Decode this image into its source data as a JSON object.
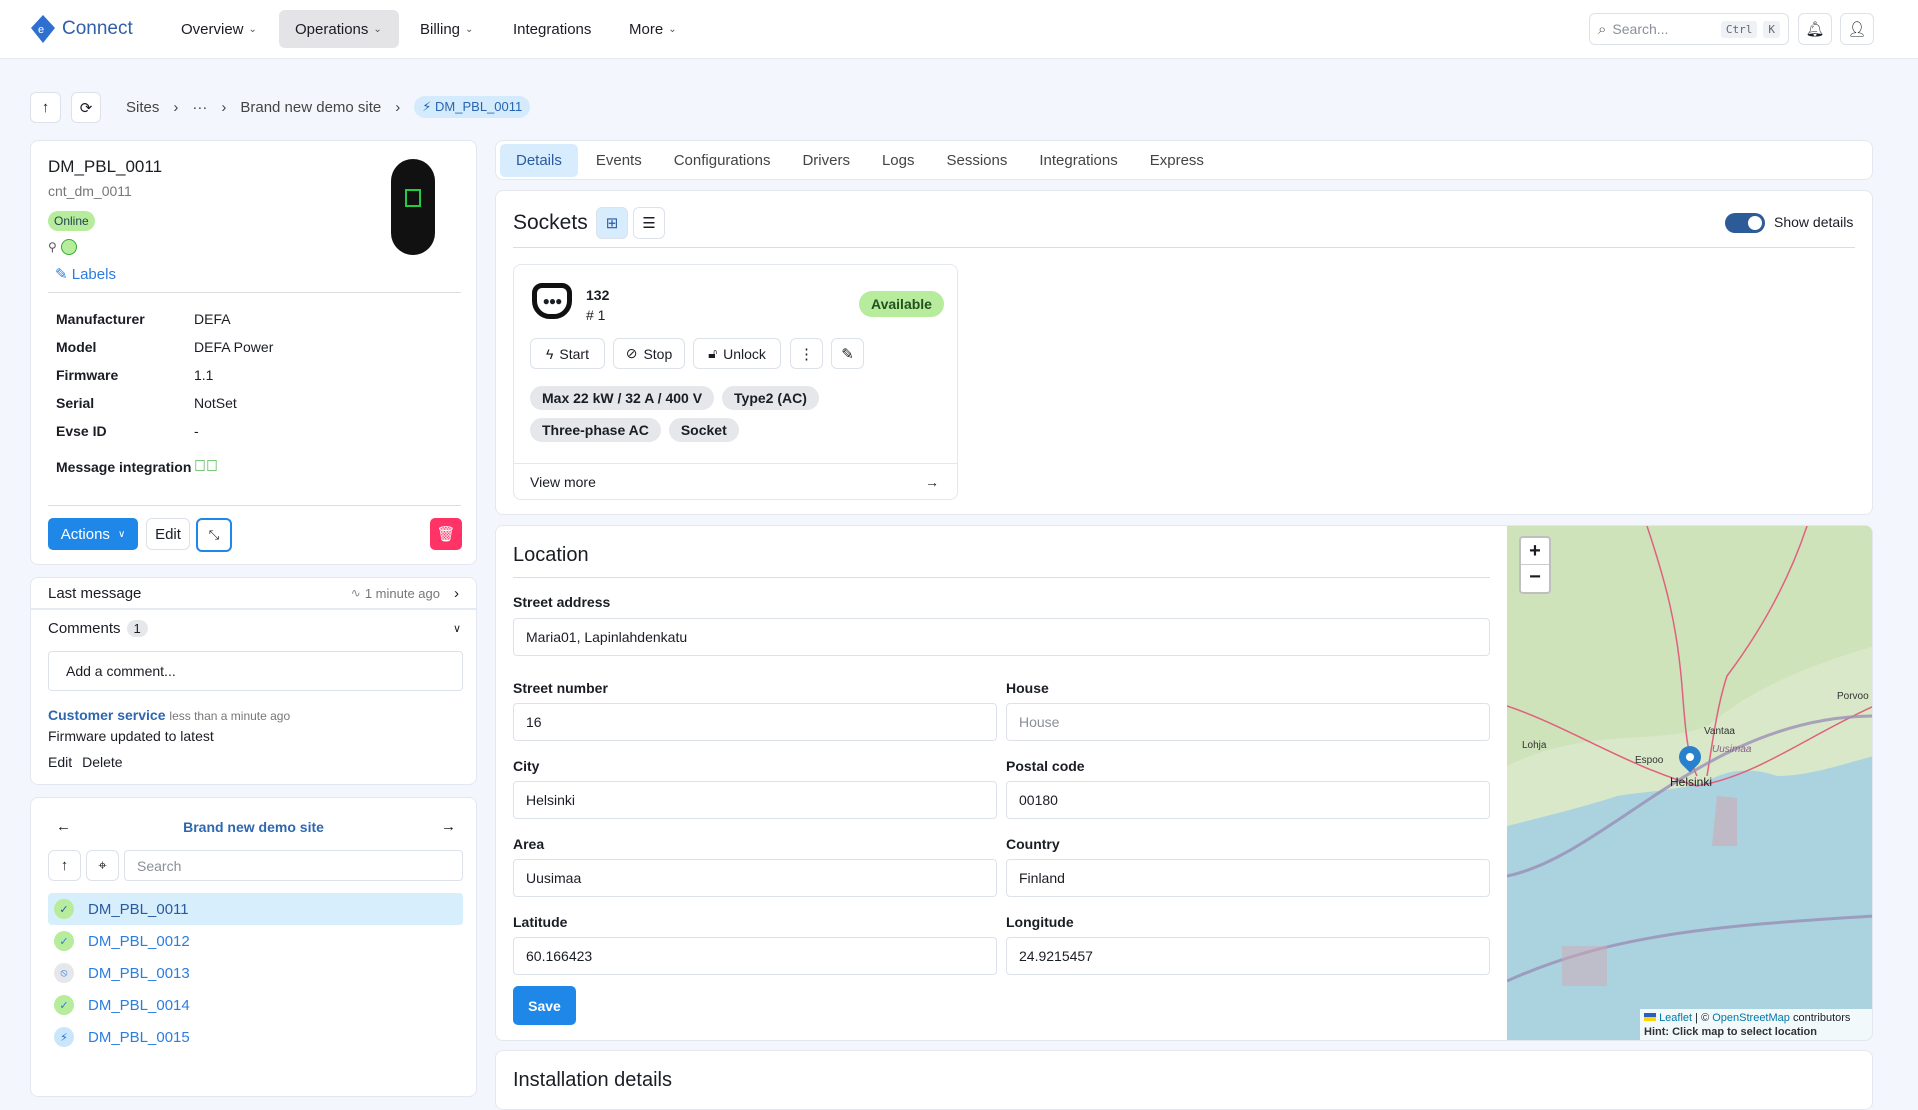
{
  "header": {
    "app_name": "Connect",
    "nav": [
      {
        "label": "Overview",
        "caret": true
      },
      {
        "label": "Operations",
        "caret": true
      },
      {
        "label": "Billing",
        "caret": true
      },
      {
        "label": "Integrations",
        "caret": false
      },
      {
        "label": "More",
        "caret": true
      }
    ],
    "search_placeholder": "Search...",
    "kbd": [
      "Ctrl",
      "K"
    ]
  },
  "breadcrumb": {
    "items": [
      "Sites",
      "···",
      "Brand new demo site"
    ],
    "current": "DM_PBL_0011"
  },
  "charger": {
    "name": "DM_PBL_0011",
    "id": "cnt_dm_0011",
    "status": "Online",
    "labels_link": "Labels",
    "details": [
      {
        "k": "Manufacturer",
        "v": "DEFA"
      },
      {
        "k": "Model",
        "v": "DEFA Power"
      },
      {
        "k": "Firmware",
        "v": "1.1"
      },
      {
        "k": "Serial",
        "v": "NotSet"
      },
      {
        "k": "Evse ID",
        "v": "-"
      },
      {
        "k": "Message integration",
        "v": ""
      }
    ],
    "actions_label": "Actions",
    "edit_label": "Edit"
  },
  "last_message": {
    "label": "Last message",
    "time": "1 minute ago"
  },
  "comments": {
    "label": "Comments",
    "count": "1",
    "placeholder": "Add a comment...",
    "author": "Customer service",
    "when": "less than a minute ago",
    "text": "Firmware updated to latest",
    "edit": "Edit",
    "delete": "Delete"
  },
  "site_list": {
    "title": "Brand new demo site",
    "search_placeholder": "Search",
    "items": [
      {
        "name": "DM_PBL_0011",
        "status": "online"
      },
      {
        "name": "DM_PBL_0012",
        "status": "online"
      },
      {
        "name": "DM_PBL_0013",
        "status": "offline"
      },
      {
        "name": "DM_PBL_0014",
        "status": "online"
      },
      {
        "name": "DM_PBL_0015",
        "status": "charging"
      }
    ]
  },
  "tabs": [
    "Details",
    "Events",
    "Configurations",
    "Drivers",
    "Logs",
    "Sessions",
    "Integrations",
    "Express"
  ],
  "sockets": {
    "title": "Sockets",
    "show_details": "Show details",
    "show_details_on": true,
    "socket": {
      "id": "132",
      "number": "# 1",
      "status": "Available",
      "start": "Start",
      "stop": "Stop",
      "unlock": "Unlock",
      "tags": [
        "Max 22 kW / 32 A / 400 V",
        "Type2 (AC)",
        "Three-phase AC",
        "Socket"
      ],
      "view_more": "View more"
    }
  },
  "location": {
    "title": "Location",
    "street_address": {
      "label": "Street address",
      "value": "Maria01, Lapinlahdenkatu"
    },
    "fields": [
      {
        "label": "Street number",
        "value": "16",
        "placeholder": ""
      },
      {
        "label": "House",
        "value": "",
        "placeholder": "House"
      },
      {
        "label": "City",
        "value": "Helsinki",
        "placeholder": ""
      },
      {
        "label": "Postal code",
        "value": "00180",
        "placeholder": ""
      },
      {
        "label": "Area",
        "value": "Uusimaa",
        "placeholder": ""
      },
      {
        "label": "Country",
        "value": "Finland",
        "placeholder": ""
      },
      {
        "label": "Latitude",
        "value": "60.166423",
        "placeholder": ""
      },
      {
        "label": "Longitude",
        "value": "24.9215457",
        "placeholder": ""
      }
    ],
    "save": "Save",
    "map": {
      "places": [
        "Porvoo",
        "Vantaa",
        "Uusimaa",
        "Lohja",
        "Espoo",
        "Helsinki"
      ],
      "leaflet": "Leaflet",
      "osm": "OpenStreetMap",
      "contributors": "contributors",
      "hint": "Hint: Click map to select location"
    }
  },
  "installation": {
    "title": "Installation details"
  },
  "colors": {
    "primary": "#1f87e8",
    "online": "#b6ec9c",
    "bg": "#f3f6fc",
    "danger": "#ff3366",
    "toggle": "#2d5b98"
  }
}
